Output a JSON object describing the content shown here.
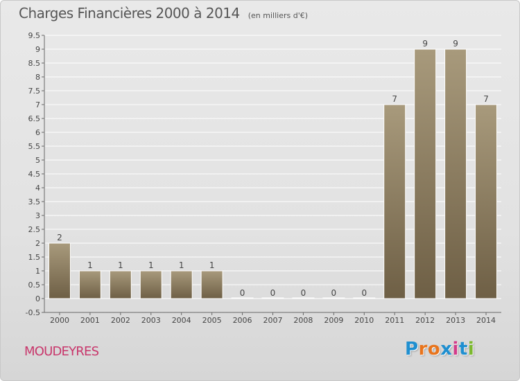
{
  "title": "Charges Financières 2000 à 2014",
  "subtitle": "(en milliers d'€)",
  "commune": "MOUDEYRES",
  "logo": {
    "text": "Proxiti",
    "letter_colors": [
      "#1f8fd0",
      "#e8741c",
      "#e8741c",
      "#1f8fd0",
      "#d23b8a",
      "#1f8fd0",
      "#7cb82f"
    ]
  },
  "colors": {
    "bar_top": "#a89a7c",
    "bar_bottom": "#6e5f45",
    "bar_edge": "#ffffff",
    "grid": "#ffffff",
    "axis": "#666666",
    "commune": "#c8366b"
  },
  "chart_data": {
    "type": "bar",
    "categories": [
      "2000",
      "2001",
      "2002",
      "2003",
      "2004",
      "2005",
      "2006",
      "2007",
      "2008",
      "2009",
      "2010",
      "2011",
      "2012",
      "2013",
      "2014"
    ],
    "values": [
      2,
      1,
      1,
      1,
      1,
      1,
      0,
      0,
      0,
      0,
      0,
      7,
      9,
      9,
      7
    ],
    "value_labels": [
      "2",
      "1",
      "1",
      "1",
      "1",
      "1",
      "0",
      "0",
      "0",
      "0",
      "0",
      "7",
      "9",
      "9",
      "7"
    ],
    "y_ticks": [
      "-0.5",
      "0",
      "0.5",
      "1",
      "1.5",
      "2",
      "2.5",
      "3",
      "3.5",
      "4",
      "4.5",
      "5",
      "5.5",
      "6",
      "6.5",
      "7",
      "7.5",
      "8",
      "8.5",
      "9",
      "9.5"
    ],
    "ylim": [
      -0.5,
      9.5
    ],
    "grid": true
  }
}
